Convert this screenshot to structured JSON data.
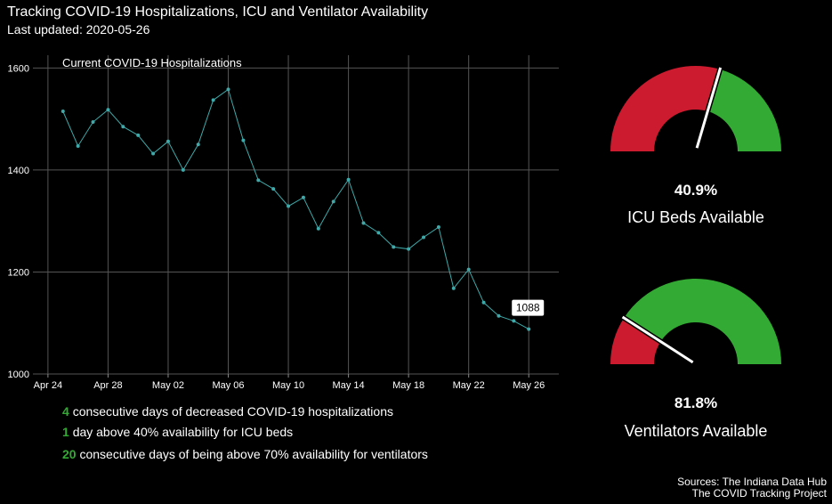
{
  "header": {
    "title": "Tracking COVID-19 Hospitalizations, ICU and Ventilator Availability",
    "subtitle": "Last updated: 2020-05-26"
  },
  "chart_data": [
    {
      "type": "line",
      "annotation": "Current COVID-19 Hospitalizations",
      "x": [
        "2020-04-25",
        "2020-04-26",
        "2020-04-27",
        "2020-04-28",
        "2020-04-29",
        "2020-04-30",
        "2020-05-01",
        "2020-05-02",
        "2020-05-03",
        "2020-05-04",
        "2020-05-05",
        "2020-05-06",
        "2020-05-07",
        "2020-05-08",
        "2020-05-09",
        "2020-05-10",
        "2020-05-11",
        "2020-05-12",
        "2020-05-13",
        "2020-05-14",
        "2020-05-15",
        "2020-05-16",
        "2020-05-17",
        "2020-05-18",
        "2020-05-19",
        "2020-05-20",
        "2020-05-21",
        "2020-05-22",
        "2020-05-23",
        "2020-05-24",
        "2020-05-25",
        "2020-05-26"
      ],
      "values": [
        1515,
        1447,
        1494,
        1518,
        1485,
        1468,
        1432,
        1456,
        1400,
        1450,
        1537,
        1558,
        1458,
        1380,
        1363,
        1329,
        1346,
        1285,
        1338,
        1381,
        1296,
        1277,
        1249,
        1245,
        1268,
        1288,
        1168,
        1205,
        1140,
        1114,
        1104,
        1088
      ],
      "xticks": [
        "Apr 24",
        "Apr 28",
        "May 02",
        "May 06",
        "May 10",
        "May 14",
        "May 18",
        "May 22",
        "May 26"
      ],
      "yticks": [
        1000,
        1200,
        1400,
        1600
      ],
      "ylim": [
        1000,
        1625
      ],
      "last_label": "1088",
      "line_color": "#3fa9a9"
    },
    {
      "type": "gauge",
      "value": "40.9%",
      "fraction": 0.409,
      "label": "ICU Beds Available",
      "colors": {
        "unavailable": "#cc1a2e",
        "available": "#33aa33",
        "needle": "#ffffff"
      }
    },
    {
      "type": "gauge",
      "value": "81.8%",
      "fraction": 0.818,
      "label": "Ventilators Available",
      "colors": {
        "unavailable": "#cc1a2e",
        "available": "#33aa33",
        "needle": "#ffffff"
      }
    }
  ],
  "stats": [
    {
      "num": "4",
      "text": "consecutive days of decreased COVID-19 hospitalizations"
    },
    {
      "num": "1",
      "text": "day above 40% availability for ICU beds"
    },
    {
      "num": "20",
      "text": "consecutive days of being above 70% availability for ventilators"
    }
  ],
  "sources": {
    "line1": "Sources: The Indiana Data Hub",
    "line2": "The COVID Tracking Project"
  }
}
